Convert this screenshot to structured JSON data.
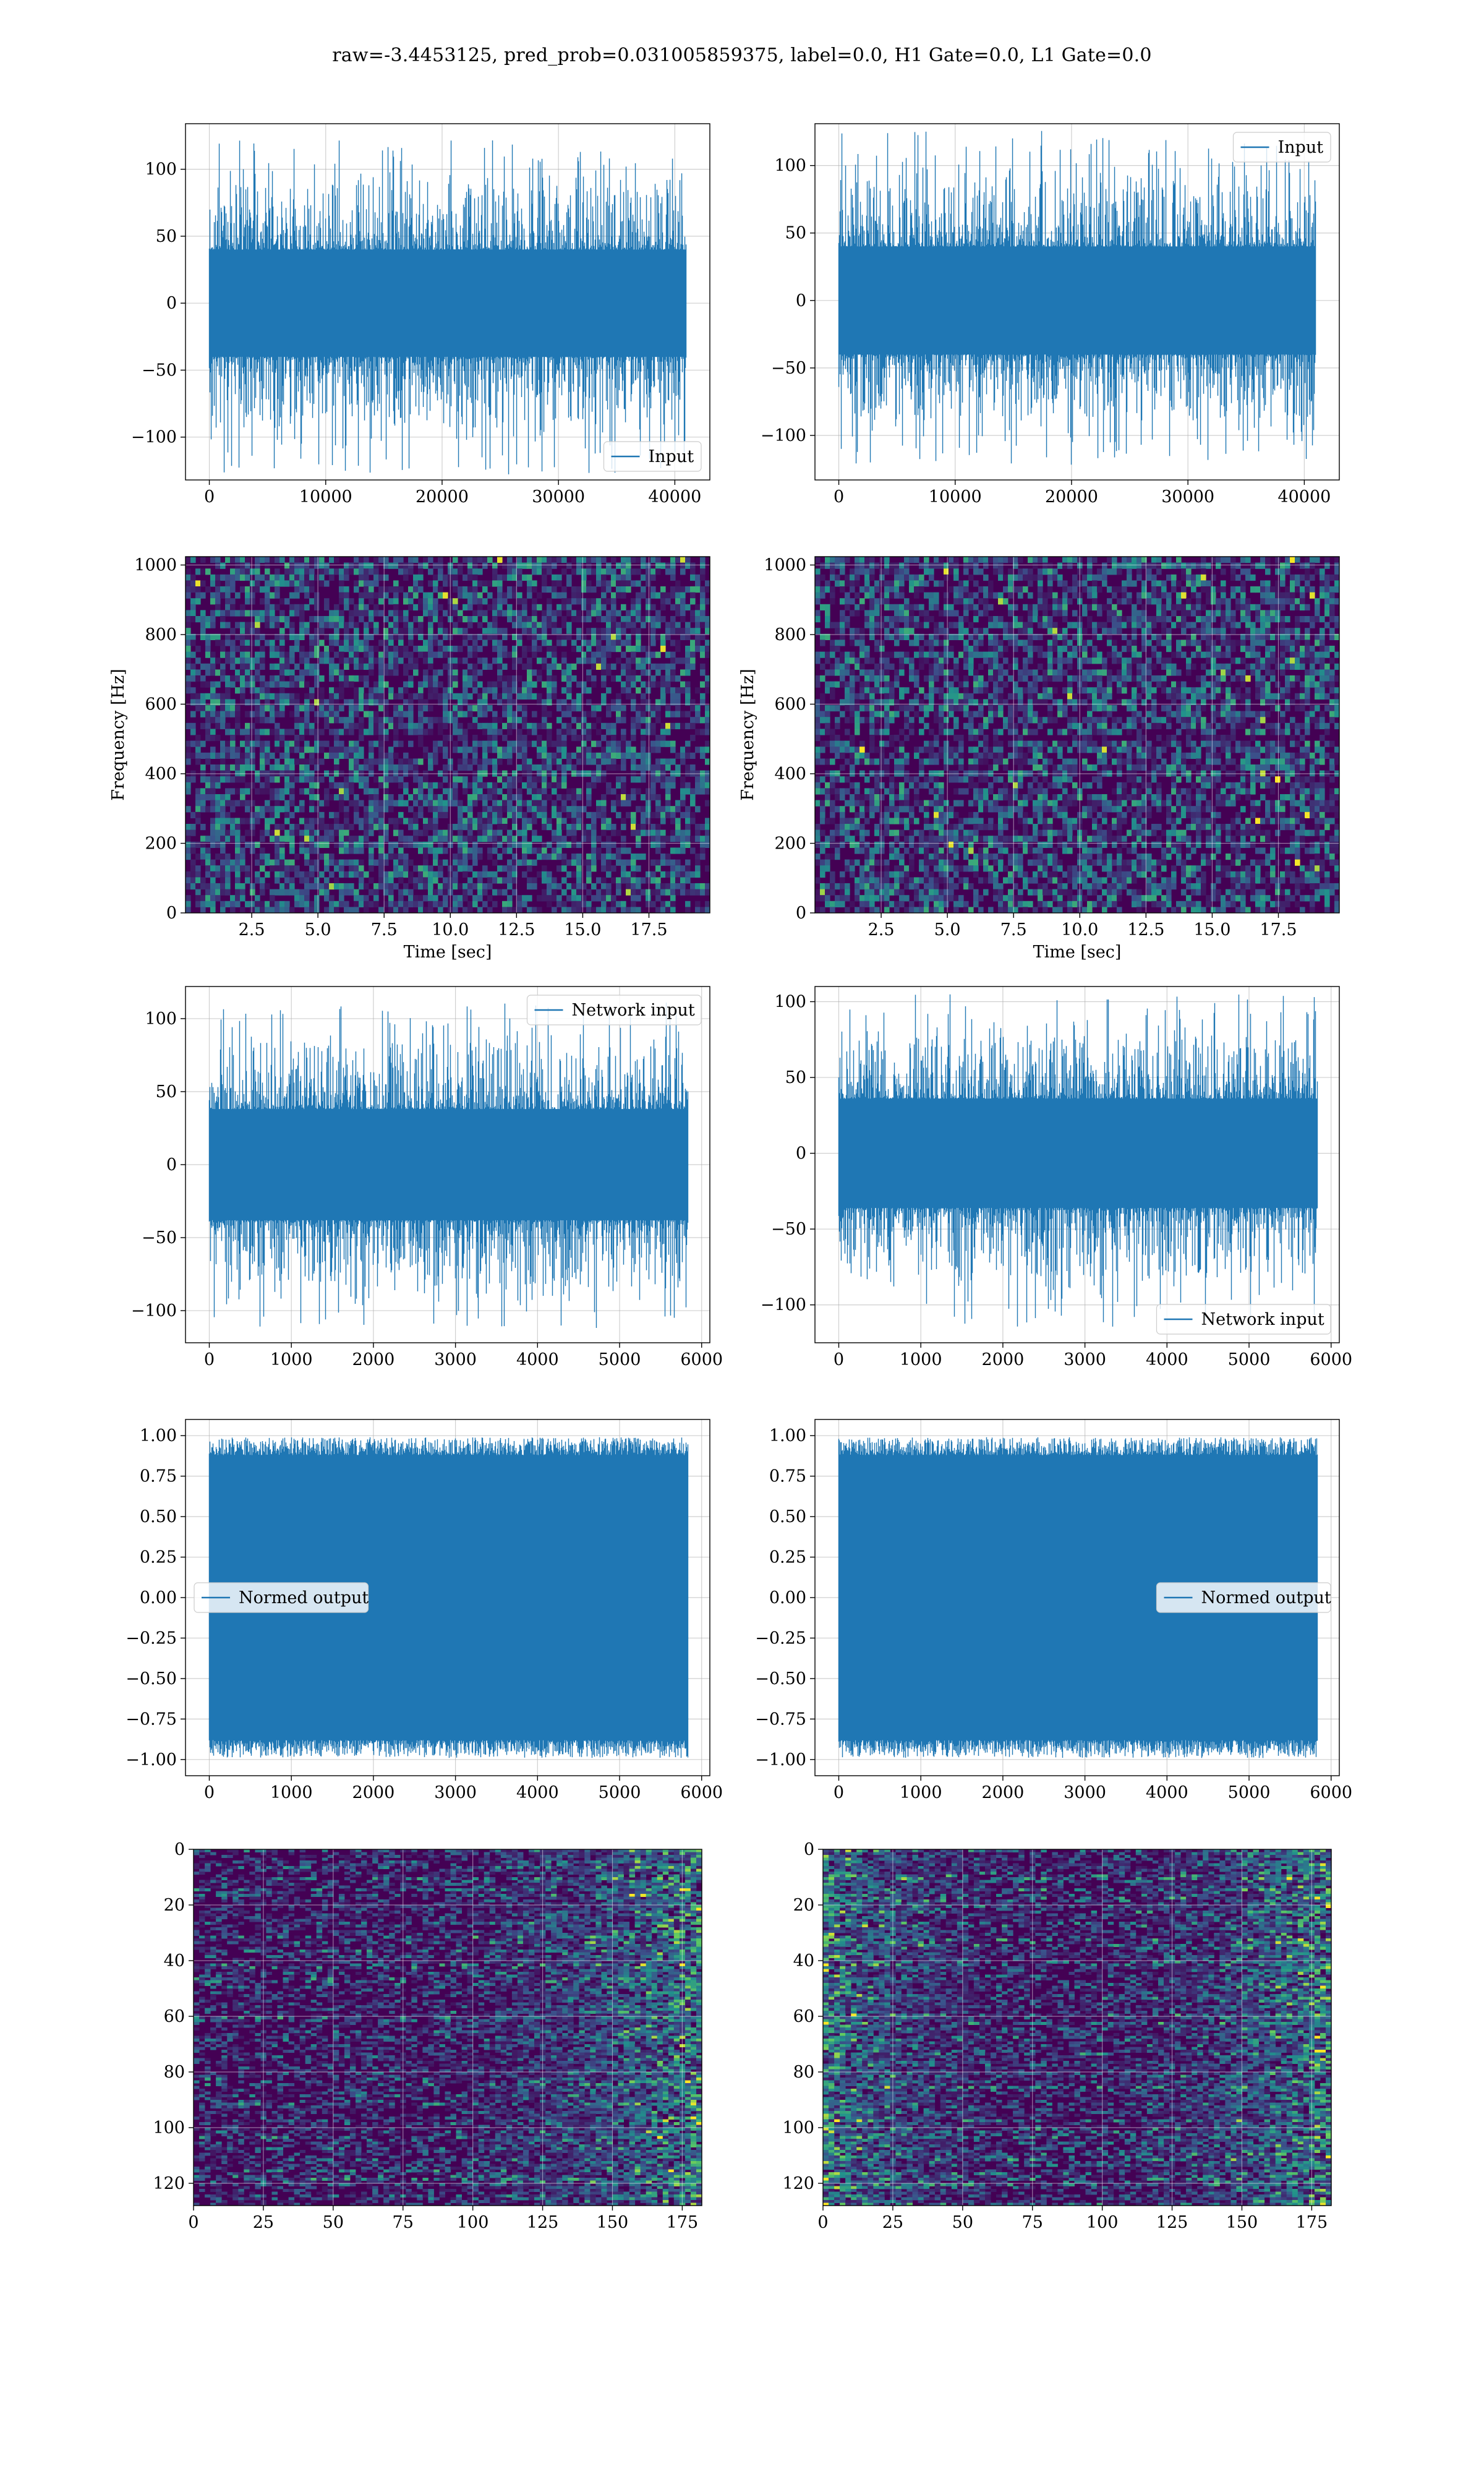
{
  "suptitle": "raw=-3.4453125, pred_prob=0.031005859375, label=0.0, H1 Gate=0.0, L1 Gate=0.0",
  "colors": {
    "series": "#1f77b4",
    "grid": "#b0b0b0",
    "spine": "#000000",
    "viridis_low": "#440154",
    "viridis_mid": "#21918c",
    "viridis_high": "#fde725"
  },
  "chart_data": [
    {
      "id": "input_h1",
      "type": "line",
      "xlim": [
        -2048,
        43008
      ],
      "ylim": [
        -132,
        134
      ],
      "xticks": [
        0,
        10000,
        20000,
        30000,
        40000
      ],
      "yticks": [
        -100,
        -50,
        0,
        50,
        100
      ],
      "x_range": [
        0,
        40960
      ],
      "amplitude": 40,
      "peak_max": 122,
      "peak_min": -128,
      "series": [
        {
          "name": "Input"
        }
      ],
      "legend": "lower right",
      "xlabel": "",
      "ylabel": "",
      "grid": true
    },
    {
      "id": "input_l1",
      "type": "line",
      "xlim": [
        -2048,
        43008
      ],
      "ylim": [
        -133,
        131
      ],
      "xticks": [
        0,
        10000,
        20000,
        30000,
        40000
      ],
      "yticks": [
        -100,
        -50,
        0,
        50,
        100
      ],
      "x_range": [
        0,
        40960
      ],
      "amplitude": 40,
      "peak_max": 126,
      "peak_min": -122,
      "series": [
        {
          "name": "Input"
        }
      ],
      "legend": "upper right",
      "xlabel": "",
      "ylabel": "",
      "grid": true
    },
    {
      "id": "spectrogram_h1",
      "type": "heatmap",
      "xlim": [
        0,
        19.8
      ],
      "ylim": [
        0,
        1024
      ],
      "xticks": [
        2.5,
        5.0,
        7.5,
        10.0,
        12.5,
        15.0,
        17.5
      ],
      "yticks": [
        0,
        200,
        400,
        600,
        800,
        1000
      ],
      "xlabel": "Time [sec]",
      "ylabel": "Frequency [Hz]",
      "grid": true,
      "dark_band_hz": 505
    },
    {
      "id": "spectrogram_l1",
      "type": "heatmap",
      "xlim": [
        0,
        19.8
      ],
      "ylim": [
        0,
        1024
      ],
      "xticks": [
        2.5,
        5.0,
        7.5,
        10.0,
        12.5,
        15.0,
        17.5
      ],
      "yticks": [
        0,
        200,
        400,
        600,
        800,
        1000
      ],
      "xlabel": "Time [sec]",
      "ylabel": "Frequency [Hz]",
      "grid": true,
      "dark_band_hz": 505
    },
    {
      "id": "network_input_h1",
      "type": "line",
      "xlim": [
        -290,
        6100
      ],
      "ylim": [
        -122,
        122
      ],
      "xticks": [
        0,
        1000,
        2000,
        3000,
        4000,
        5000,
        6000
      ],
      "yticks": [
        -100,
        -50,
        0,
        50,
        100
      ],
      "x_range": [
        0,
        5830
      ],
      "amplitude": 38,
      "peak_max": 112,
      "peak_min": -112,
      "series": [
        {
          "name": "Network input"
        }
      ],
      "legend": "upper right",
      "xlabel": "",
      "ylabel": "",
      "grid": true
    },
    {
      "id": "network_input_l1",
      "type": "line",
      "xlim": [
        -290,
        6100
      ],
      "ylim": [
        -125,
        110
      ],
      "xticks": [
        0,
        1000,
        2000,
        3000,
        4000,
        5000,
        6000
      ],
      "yticks": [
        -100,
        -50,
        0,
        50,
        100
      ],
      "x_range": [
        0,
        5830
      ],
      "amplitude": 36,
      "peak_max": 105,
      "peak_min": -115,
      "series": [
        {
          "name": "Network input"
        }
      ],
      "legend": "lower right",
      "xlabel": "",
      "ylabel": "",
      "grid": true
    },
    {
      "id": "normed_output_h1",
      "type": "line",
      "xlim": [
        -290,
        6100
      ],
      "ylim": [
        -1.1,
        1.1
      ],
      "xticks": [
        0,
        1000,
        2000,
        3000,
        4000,
        5000,
        6000
      ],
      "yticks": [
        -1.0,
        -0.75,
        -0.5,
        -0.25,
        0.0,
        0.25,
        0.5,
        0.75,
        1.0
      ],
      "x_range": [
        0,
        5830
      ],
      "amplitude": 0.88,
      "peak_max": 0.99,
      "peak_min": -0.99,
      "series": [
        {
          "name": "Normed output"
        }
      ],
      "legend": "center left",
      "xlabel": "",
      "ylabel": "",
      "grid": true
    },
    {
      "id": "normed_output_l1",
      "type": "line",
      "xlim": [
        -290,
        6100
      ],
      "ylim": [
        -1.1,
        1.1
      ],
      "xticks": [
        0,
        1000,
        2000,
        3000,
        4000,
        5000,
        6000
      ],
      "yticks": [
        -1.0,
        -0.75,
        -0.5,
        -0.25,
        0.0,
        0.25,
        0.5,
        0.75,
        1.0
      ],
      "x_range": [
        0,
        5830
      ],
      "amplitude": 0.88,
      "peak_max": 0.99,
      "peak_min": -0.99,
      "series": [
        {
          "name": "Normed output"
        }
      ],
      "legend": "center right",
      "xlabel": "",
      "ylabel": "",
      "grid": true
    },
    {
      "id": "feature_map_h1",
      "type": "heatmap",
      "xlim": [
        0,
        182
      ],
      "ylim": [
        0,
        128
      ],
      "y_inverted": true,
      "xticks": [
        0,
        25,
        50,
        75,
        100,
        125,
        150,
        175
      ],
      "yticks": [
        0,
        20,
        40,
        60,
        80,
        100,
        120
      ],
      "xlabel": "",
      "ylabel": "",
      "grid": true,
      "bright_side": "right"
    },
    {
      "id": "feature_map_l1",
      "type": "heatmap",
      "xlim": [
        0,
        182
      ],
      "ylim": [
        0,
        128
      ],
      "y_inverted": true,
      "xticks": [
        0,
        25,
        50,
        75,
        100,
        125,
        150,
        175
      ],
      "yticks": [
        0,
        20,
        40,
        60,
        80,
        100,
        120
      ],
      "xlabel": "",
      "ylabel": "",
      "grid": true,
      "bright_side": "both"
    }
  ]
}
